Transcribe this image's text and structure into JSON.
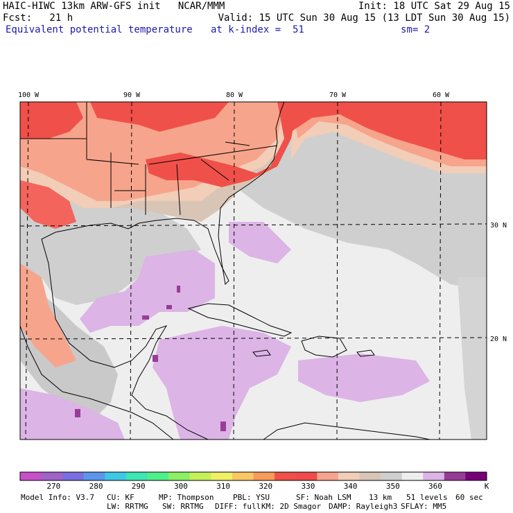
{
  "header": {
    "line1_left": "HAIC-HIWC 13km ARW-GFS init   NCAR/MMM",
    "line1_right": "Init: 18 UTC Sat 29 Aug 15",
    "line2_left": "Fcst:   21 h",
    "line2_right": "Valid: 15 UTC Sun 30 Aug 15 (13 LDT Sun 30 Aug 15)",
    "field_name": "Equivalent potential temperature",
    "level": "at k-index =  51",
    "smoothing": "sm= 2"
  },
  "map": {
    "lon_labels": [
      "100 W",
      "90 W",
      "80 W",
      "70 W",
      "60 W"
    ],
    "lat_labels": [
      "30 N",
      "20 N"
    ],
    "colors": {
      "warm_high": "#f0504a",
      "warm_mid": "#f7a48c",
      "warm_low": "#f2cdb7",
      "tan": "#d8c5b6",
      "gray": "#cfcfcf",
      "light": "#eeeeee",
      "lavender": "#dcb4e6",
      "purple": "#9a3c96"
    }
  },
  "colorbar": {
    "colors": [
      "#c94fc9",
      "#a064c8",
      "#7a6fe0",
      "#5a96ec",
      "#3cc8e6",
      "#3ee6b4",
      "#4ef08a",
      "#8cf064",
      "#c6f05a",
      "#f0f064",
      "#f8c864",
      "#f89a5a",
      "#f05046",
      "#f04a4a",
      "#f7a48c",
      "#f2cdb7",
      "#d8c5b6",
      "#cfcfcf",
      "#eeeeee",
      "#dcb4e6",
      "#963c96",
      "#780078"
    ],
    "tick_labels": [
      "270",
      "280",
      "290",
      "300",
      "310",
      "320",
      "330",
      "340",
      "350",
      "360"
    ],
    "unit": "K"
  },
  "footer": {
    "row1": [
      "Model Info: V3.7",
      "CU: KF",
      "MP: Thompson",
      "PBL: YSU",
      "SF: Noah LSM",
      "13 km",
      "51 levels",
      "60 sec"
    ],
    "row2": [
      "LW: RRTMG",
      "SW: RRTMG",
      "DIFF: full",
      "KM: 2D Smagor",
      "DAMP: Rayleigh3",
      "SFLAY: MM5"
    ]
  }
}
